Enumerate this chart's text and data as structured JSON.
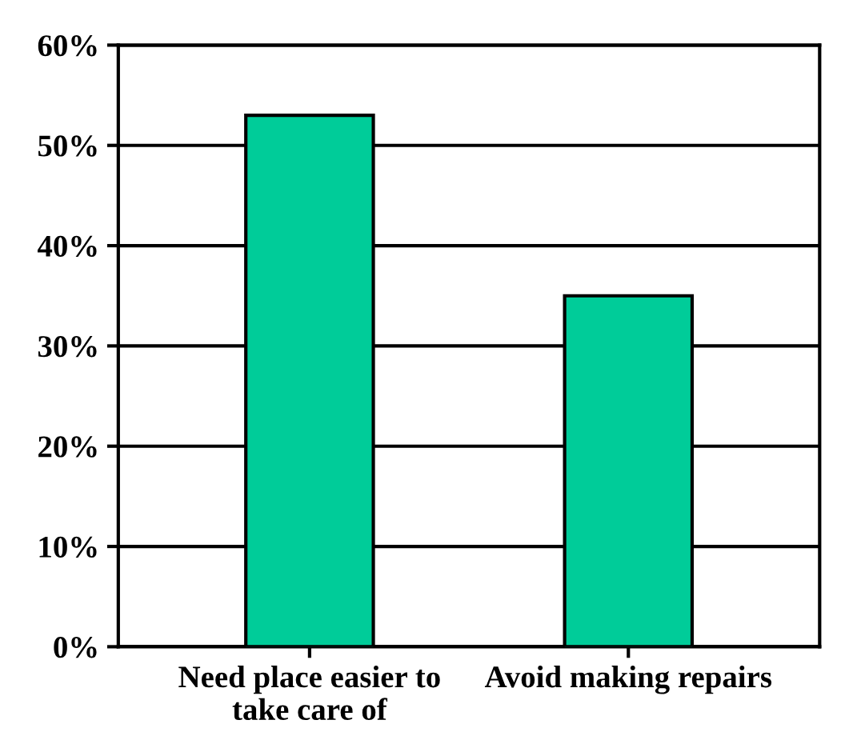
{
  "chart_data": {
    "type": "bar",
    "categories": [
      "Need place easier to\ntake care of",
      "Avoid making repairs"
    ],
    "values": [
      53,
      35
    ],
    "color": "#00cc99",
    "ylim": [
      0,
      60
    ],
    "yticks": [
      {
        "value": 0,
        "label": "0%"
      },
      {
        "value": 10,
        "label": "10%"
      },
      {
        "value": 20,
        "label": "20%"
      },
      {
        "value": 30,
        "label": "30%"
      },
      {
        "value": 40,
        "label": "40%"
      },
      {
        "value": 50,
        "label": "50%"
      },
      {
        "value": 60,
        "label": "60%"
      }
    ],
    "grid": "y"
  }
}
